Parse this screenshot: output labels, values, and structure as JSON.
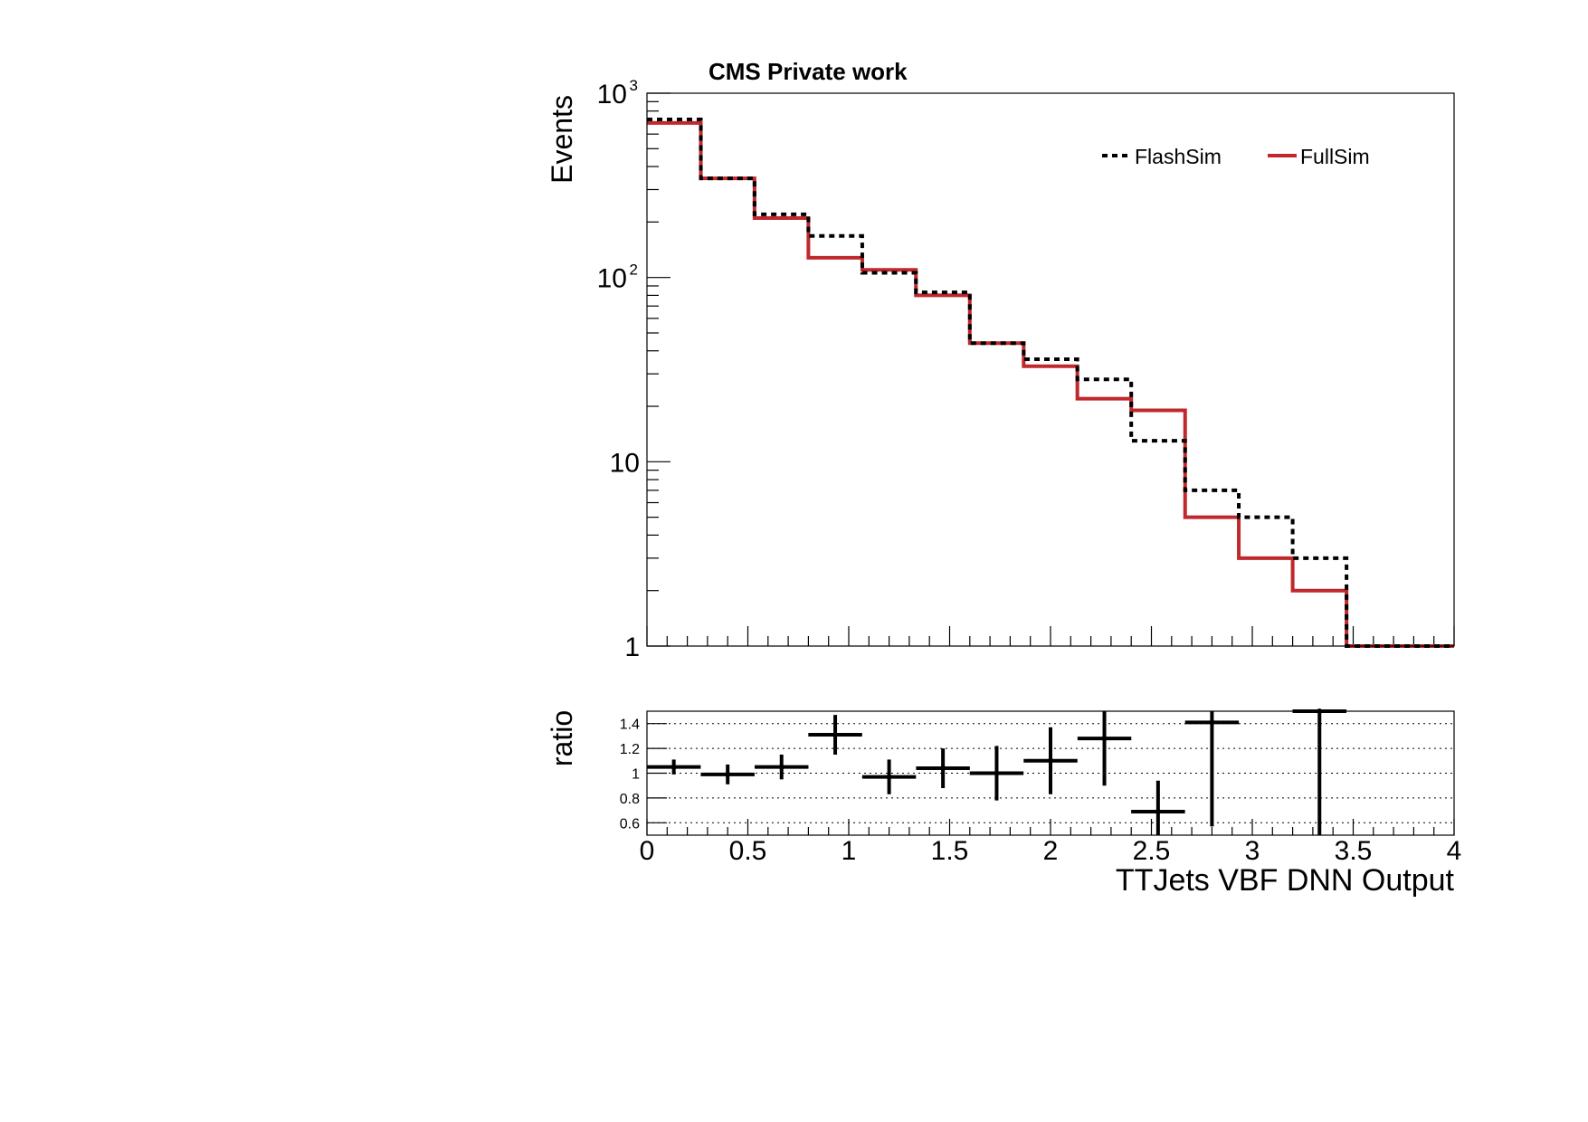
{
  "chart_data": [
    {
      "type": "line",
      "subtype": "step-histogram",
      "title": "CMS Private work",
      "ylabel": "Events",
      "yscale": "log",
      "ylim": [
        1,
        1000
      ],
      "xlim": [
        0,
        4
      ],
      "yticks": [
        {
          "value": 1,
          "label": "1"
        },
        {
          "value": 10,
          "label": "10"
        },
        {
          "value": 100,
          "label": "10",
          "exp": "2"
        },
        {
          "value": 1000,
          "label": "10",
          "exp": "3"
        }
      ],
      "legend_position": "top-right",
      "bin_edges": [
        0,
        0.267,
        0.533,
        0.8,
        1.067,
        1.333,
        1.6,
        1.867,
        2.133,
        2.4,
        2.667,
        2.933,
        3.2,
        3.467,
        3.733,
        4.0
      ],
      "series": [
        {
          "name": "FlashSim",
          "style": "dashed",
          "color": "#000000",
          "values": [
            720,
            345,
            220,
            168,
            106,
            83,
            44,
            36,
            28,
            13,
            7,
            5,
            3,
            1,
            1
          ]
        },
        {
          "name": "FullSim",
          "style": "solid",
          "color": "#c0282d",
          "values": [
            690,
            345,
            210,
            128,
            110,
            80,
            44,
            33,
            22,
            19,
            5,
            3,
            2,
            1,
            1
          ]
        }
      ]
    },
    {
      "type": "scatter",
      "subtype": "ratio-with-errors",
      "ylabel": "ratio",
      "xlabel": "TTJets VBF DNN Output",
      "xlim": [
        0,
        4
      ],
      "ylim": [
        0.5,
        1.5
      ],
      "grid": true,
      "yticks": [
        "0.6",
        "0.8",
        "1",
        "1.2",
        "1.4"
      ],
      "xticks": [
        "0",
        "0.5",
        "1",
        "1.5",
        "2",
        "2.5",
        "3",
        "3.5",
        "4"
      ],
      "points": [
        {
          "x": 0.133,
          "y": 1.05,
          "err": 0.06
        },
        {
          "x": 0.4,
          "y": 0.99,
          "err": 0.08
        },
        {
          "x": 0.667,
          "y": 1.05,
          "err": 0.1
        },
        {
          "x": 0.933,
          "y": 1.31,
          "err": 0.16
        },
        {
          "x": 1.2,
          "y": 0.97,
          "err": 0.14
        },
        {
          "x": 1.467,
          "y": 1.04,
          "err": 0.16
        },
        {
          "x": 1.733,
          "y": 1.0,
          "err": 0.22
        },
        {
          "x": 2.0,
          "y": 1.1,
          "err": 0.27
        },
        {
          "x": 2.267,
          "y": 1.28,
          "err": 0.38
        },
        {
          "x": 2.533,
          "y": 0.69,
          "err": 0.25
        },
        {
          "x": 2.8,
          "y": 1.41,
          "err": 0.84
        },
        {
          "x": 3.333,
          "y": 1.5,
          "err": 1.0
        }
      ]
    }
  ]
}
